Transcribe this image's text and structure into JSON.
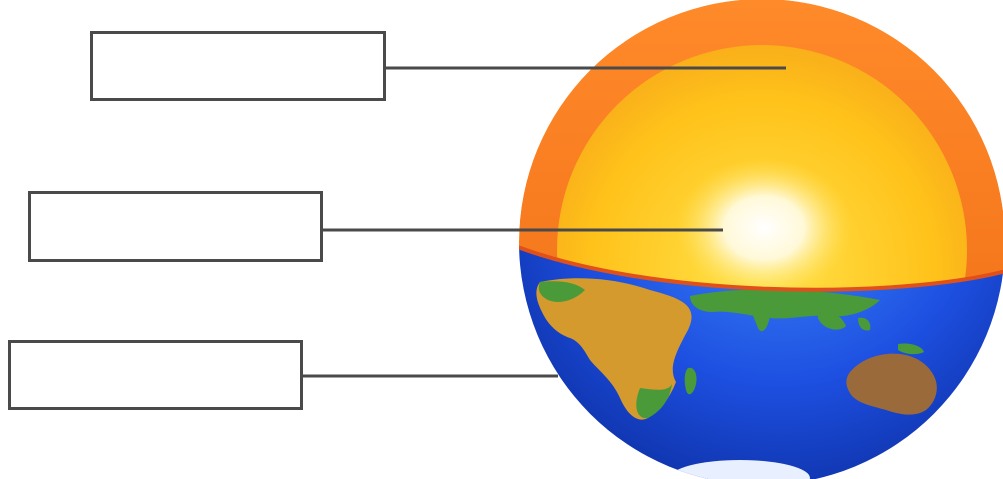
{
  "diagram": {
    "labels": [
      {
        "id": "crust-layer",
        "text": ""
      },
      {
        "id": "core-layer",
        "text": ""
      },
      {
        "id": "surface-layer",
        "text": ""
      }
    ],
    "colors": {
      "mantle_outer": "#f07a1e",
      "mantle_inner": "#ffc21a",
      "core": "#fffbe6",
      "ocean": "#1d4fe0",
      "land": "#d49a2e",
      "land_green": "#4a9a3a",
      "leader_line": "#4a4a4a"
    }
  }
}
